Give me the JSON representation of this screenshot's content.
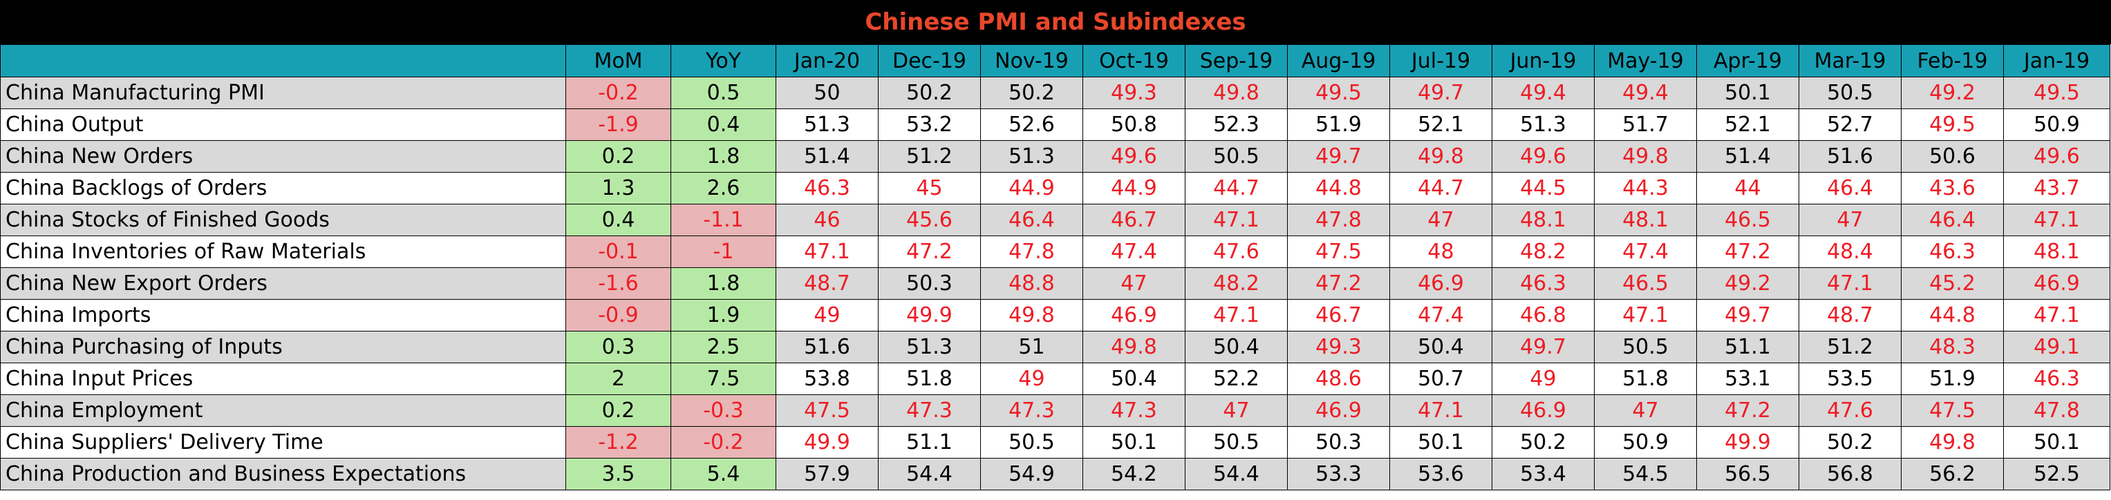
{
  "chart_data": {
    "type": "table",
    "title": "Chinese PMI and Subindexes",
    "columns": [
      "",
      "MoM",
      "YoY",
      "Jan-20",
      "Dec-19",
      "Nov-19",
      "Oct-19",
      "Sep-19",
      "Aug-19",
      "Jul-19",
      "Jun-19",
      "May-19",
      "Apr-19",
      "Mar-19",
      "Feb-19",
      "Jan-19"
    ],
    "rows": [
      {
        "label": "China Manufacturing PMI",
        "mom": "-0.2",
        "yoy": "0.5",
        "values": [
          "50",
          "50.2",
          "50.2",
          "49.3",
          "49.8",
          "49.5",
          "49.7",
          "49.4",
          "49.4",
          "50.1",
          "50.5",
          "49.2",
          "49.5"
        ]
      },
      {
        "label": "China Output",
        "mom": "-1.9",
        "yoy": "0.4",
        "values": [
          "51.3",
          "53.2",
          "52.6",
          "50.8",
          "52.3",
          "51.9",
          "52.1",
          "51.3",
          "51.7",
          "52.1",
          "52.7",
          "49.5",
          "50.9"
        ]
      },
      {
        "label": "China New Orders",
        "mom": "0.2",
        "yoy": "1.8",
        "values": [
          "51.4",
          "51.2",
          "51.3",
          "49.6",
          "50.5",
          "49.7",
          "49.8",
          "49.6",
          "49.8",
          "51.4",
          "51.6",
          "50.6",
          "49.6"
        ]
      },
      {
        "label": "China Backlogs of Orders",
        "mom": "1.3",
        "yoy": "2.6",
        "values": [
          "46.3",
          "45",
          "44.9",
          "44.9",
          "44.7",
          "44.8",
          "44.7",
          "44.5",
          "44.3",
          "44",
          "46.4",
          "43.6",
          "43.7"
        ]
      },
      {
        "label": "China Stocks of Finished Goods",
        "mom": "0.4",
        "yoy": "-1.1",
        "values": [
          "46",
          "45.6",
          "46.4",
          "46.7",
          "47.1",
          "47.8",
          "47",
          "48.1",
          "48.1",
          "46.5",
          "47",
          "46.4",
          "47.1"
        ]
      },
      {
        "label": "China Inventories of Raw Materials",
        "mom": "-0.1",
        "yoy": "-1",
        "values": [
          "47.1",
          "47.2",
          "47.8",
          "47.4",
          "47.6",
          "47.5",
          "48",
          "48.2",
          "47.4",
          "47.2",
          "48.4",
          "46.3",
          "48.1"
        ]
      },
      {
        "label": "China New Export Orders",
        "mom": "-1.6",
        "yoy": "1.8",
        "values": [
          "48.7",
          "50.3",
          "48.8",
          "47",
          "48.2",
          "47.2",
          "46.9",
          "46.3",
          "46.5",
          "49.2",
          "47.1",
          "45.2",
          "46.9"
        ]
      },
      {
        "label": "China Imports",
        "mom": "-0.9",
        "yoy": "1.9",
        "values": [
          "49",
          "49.9",
          "49.8",
          "46.9",
          "47.1",
          "46.7",
          "47.4",
          "46.8",
          "47.1",
          "49.7",
          "48.7",
          "44.8",
          "47.1"
        ]
      },
      {
        "label": "China Purchasing of Inputs",
        "mom": "0.3",
        "yoy": "2.5",
        "values": [
          "51.6",
          "51.3",
          "51",
          "49.8",
          "50.4",
          "49.3",
          "50.4",
          "49.7",
          "50.5",
          "51.1",
          "51.2",
          "48.3",
          "49.1"
        ]
      },
      {
        "label": "China Input Prices",
        "mom": "2",
        "yoy": "7.5",
        "values": [
          "53.8",
          "51.8",
          "49",
          "50.4",
          "52.2",
          "48.6",
          "50.7",
          "49",
          "51.8",
          "53.1",
          "53.5",
          "51.9",
          "46.3"
        ]
      },
      {
        "label": "China Employment",
        "mom": "0.2",
        "yoy": "-0.3",
        "values": [
          "47.5",
          "47.3",
          "47.3",
          "47.3",
          "47",
          "46.9",
          "47.1",
          "46.9",
          "47",
          "47.2",
          "47.6",
          "47.5",
          "47.8"
        ]
      },
      {
        "label": "China Suppliers' Delivery Time",
        "mom": "-1.2",
        "yoy": "-0.2",
        "values": [
          "49.9",
          "51.1",
          "50.5",
          "50.1",
          "50.5",
          "50.3",
          "50.1",
          "50.2",
          "50.9",
          "49.9",
          "50.2",
          "49.8",
          "50.1"
        ]
      },
      {
        "label": "China Production and Business Expectations",
        "mom": "3.5",
        "yoy": "5.4",
        "values": [
          "57.9",
          "54.4",
          "54.9",
          "54.2",
          "54.4",
          "53.3",
          "53.6",
          "53.4",
          "54.5",
          "56.5",
          "56.8",
          "56.2",
          "52.5"
        ]
      }
    ]
  },
  "colors": {
    "title_bg": "#000000",
    "title_text": "#e8472b",
    "header_bg": "#17a0b4",
    "row_shade": "#d9d9d9",
    "below_50_text": "#ee1c24",
    "change_positive_bg": "#b7e9a6",
    "change_negative_bg": "#e9b5b6"
  }
}
